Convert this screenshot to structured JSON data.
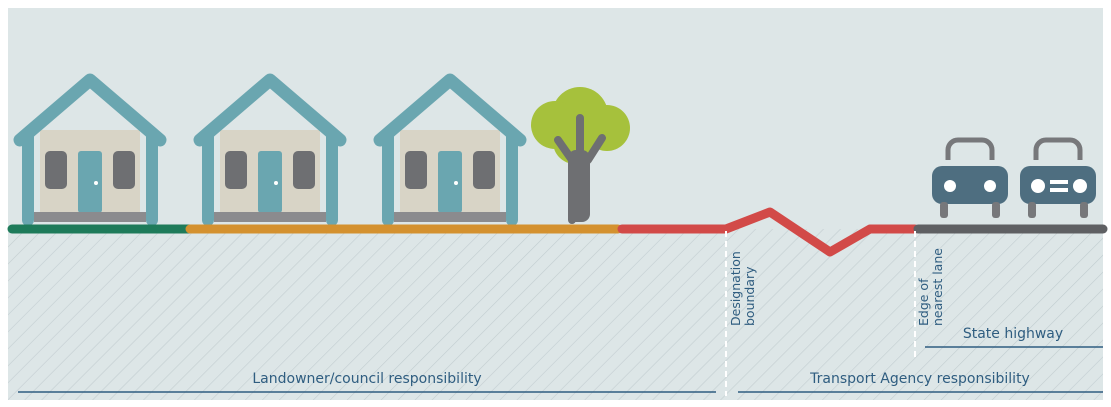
{
  "markers": {
    "designation_boundary": [
      "Designation",
      "boundary"
    ],
    "edge_of_lane": [
      "Edge of",
      "nearest lane"
    ]
  },
  "zones": {
    "state_highway": "State highway",
    "landowner": "Landowner/council responsibility",
    "transport_agency": "Transport Agency responsibility"
  }
}
